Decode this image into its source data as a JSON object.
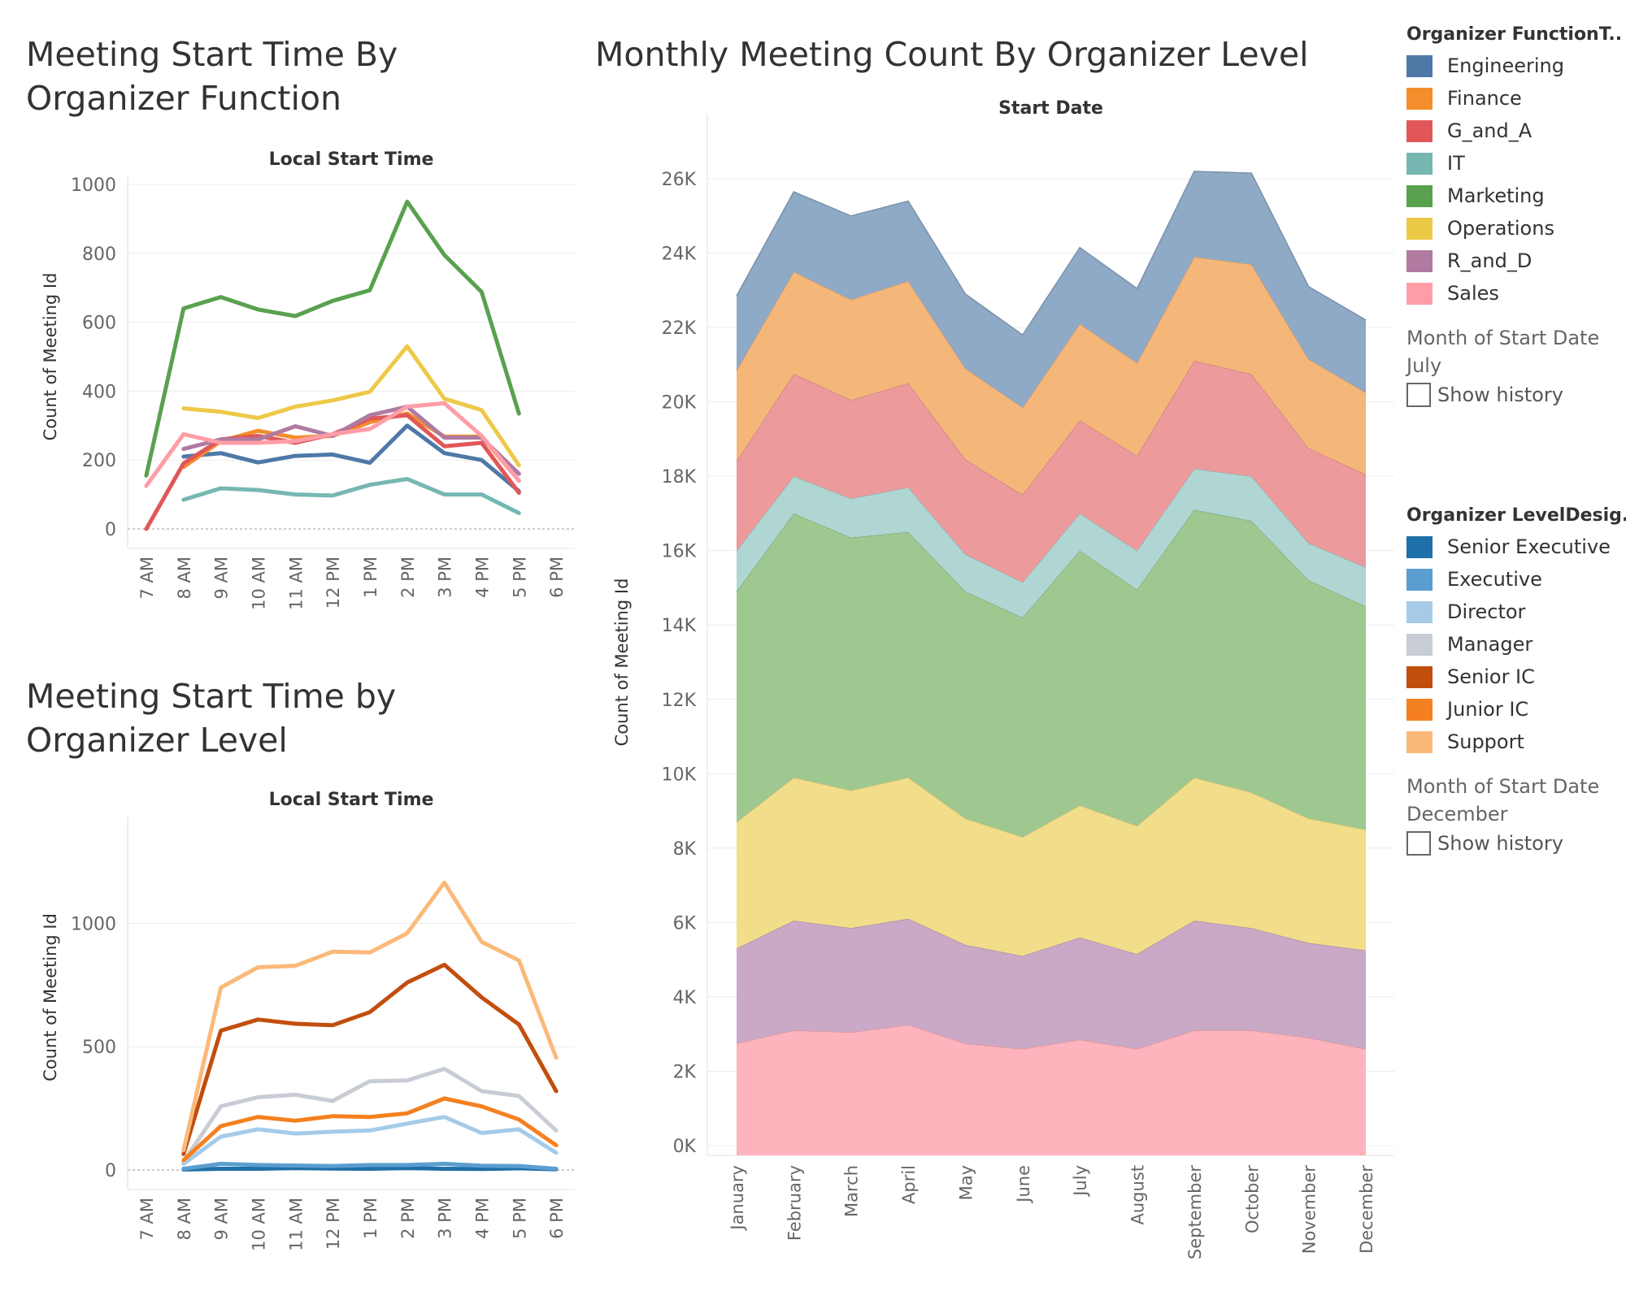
{
  "chart_data": [
    {
      "type": "line",
      "title": "Meeting Start Time By Organizer Function",
      "xlabel": "Local Start Time",
      "ylabel": "Count of Meeting Id",
      "categories": [
        "7 AM",
        "8 AM",
        "9 AM",
        "10 AM",
        "11 AM",
        "12 PM",
        "1 PM",
        "2 PM",
        "3 PM",
        "4 PM",
        "5 PM",
        "6 PM"
      ],
      "ylim": [
        0,
        1000
      ],
      "yticks": [
        0,
        200,
        400,
        600,
        800,
        1000
      ],
      "series": [
        {
          "name": "Engineering",
          "color": "#4e79a7",
          "values": [
            null,
            210,
            220,
            193,
            212,
            216,
            192,
            300,
            220,
            200,
            110,
            null
          ]
        },
        {
          "name": "Finance",
          "color": "#f28e2b",
          "values": [
            null,
            180,
            255,
            285,
            265,
            270,
            310,
            335,
            268,
            268,
            140,
            null
          ]
        },
        {
          "name": "G_and_A",
          "color": "#e15759",
          "values": [
            0,
            190,
            260,
            270,
            250,
            275,
            320,
            330,
            240,
            250,
            105,
            null
          ]
        },
        {
          "name": "IT",
          "color": "#76b7b2",
          "values": [
            null,
            85,
            118,
            113,
            100,
            97,
            128,
            145,
            100,
            100,
            46,
            null
          ]
        },
        {
          "name": "Marketing",
          "color": "#59a14f",
          "values": [
            155,
            640,
            673,
            637,
            618,
            662,
            693,
            950,
            795,
            688,
            335,
            null
          ]
        },
        {
          "name": "Operations",
          "color": "#edc948",
          "values": [
            null,
            350,
            340,
            322,
            355,
            373,
            398,
            530,
            378,
            345,
            185,
            null
          ]
        },
        {
          "name": "R_and_D",
          "color": "#b07aa1",
          "values": [
            null,
            232,
            260,
            260,
            298,
            270,
            330,
            355,
            265,
            265,
            160,
            null
          ]
        },
        {
          "name": "Sales",
          "color": "#ff9da7",
          "values": [
            125,
            275,
            250,
            250,
            255,
            275,
            290,
            355,
            365,
            270,
            140,
            null
          ]
        }
      ]
    },
    {
      "type": "line",
      "title": "Meeting Start Time by Organizer Level",
      "xlabel": "Local Start Time",
      "ylabel": "Count of Meeting Id",
      "categories": [
        "7 AM",
        "8 AM",
        "9 AM",
        "10 AM",
        "11 AM",
        "12 PM",
        "1 PM",
        "2 PM",
        "3 PM",
        "4 PM",
        "5 PM",
        "6 PM"
      ],
      "ylim": [
        0,
        1400
      ],
      "yticks": [
        0,
        500,
        1000
      ],
      "series": [
        {
          "name": "Senior Executive",
          "color": "#1f6fa8",
          "values": [
            null,
            2,
            5,
            5,
            8,
            6,
            5,
            8,
            5,
            4,
            7,
            3
          ]
        },
        {
          "name": "Executive",
          "color": "#5a9ecf",
          "values": [
            null,
            5,
            25,
            20,
            18,
            16,
            20,
            20,
            25,
            17,
            16,
            5
          ]
        },
        {
          "name": "Director",
          "color": "#a5cbe8",
          "values": [
            null,
            25,
            135,
            165,
            148,
            155,
            160,
            188,
            215,
            150,
            165,
            70
          ]
        },
        {
          "name": "Manager",
          "color": "#c8ccd4",
          "values": [
            null,
            35,
            258,
            295,
            305,
            280,
            360,
            363,
            410,
            320,
            300,
            160
          ]
        },
        {
          "name": "Senior IC",
          "color": "#c24e0e",
          "values": [
            null,
            65,
            565,
            610,
            593,
            587,
            640,
            760,
            832,
            700,
            590,
            320
          ]
        },
        {
          "name": "Junior IC",
          "color": "#f4801f",
          "values": [
            null,
            40,
            178,
            215,
            200,
            218,
            215,
            230,
            290,
            258,
            205,
            100
          ]
        },
        {
          "name": "Support",
          "color": "#fbb979",
          "values": [
            null,
            80,
            740,
            822,
            828,
            885,
            882,
            960,
            1165,
            925,
            850,
            455
          ]
        }
      ]
    },
    {
      "type": "area",
      "stacked": true,
      "title": "Monthly Meeting Count By Organizer Level",
      "xlabel": "Start Date",
      "ylabel": "Count of Meeting Id",
      "categories": [
        "January",
        "February",
        "March",
        "April",
        "May",
        "June",
        "July",
        "August",
        "September",
        "October",
        "November",
        "December"
      ],
      "ylim": [
        0,
        26000
      ],
      "yticks": [
        0,
        2000,
        4000,
        6000,
        8000,
        10000,
        12000,
        14000,
        16000,
        18000,
        20000,
        22000,
        24000,
        26000
      ],
      "ytick_labels": [
        "0K",
        "2K",
        "4K",
        "6K",
        "8K",
        "10K",
        "12K",
        "14K",
        "16K",
        "18K",
        "20K",
        "22K",
        "24K",
        "26K"
      ],
      "series": [
        {
          "name": "Sales",
          "color": "#ffb3bc",
          "values": [
            2750,
            3100,
            3050,
            3250,
            2750,
            2600,
            2850,
            2600,
            3100,
            3100,
            2900,
            2600
          ]
        },
        {
          "name": "R_and_D",
          "color": "#c9a9c6",
          "values": [
            2550,
            2950,
            2800,
            2850,
            2650,
            2500,
            2750,
            2550,
            2950,
            2750,
            2550,
            2650
          ]
        },
        {
          "name": "Operations",
          "color": "#f2dd8a",
          "values": [
            3400,
            3850,
            3700,
            3800,
            3400,
            3200,
            3550,
            3450,
            3850,
            3650,
            3350,
            3250
          ]
        },
        {
          "name": "Marketing",
          "color": "#9fc891",
          "values": [
            6200,
            7100,
            6800,
            6600,
            6100,
            5900,
            6850,
            6350,
            7200,
            7300,
            6400,
            6000
          ]
        },
        {
          "name": "IT",
          "color": "#afd6d3",
          "values": [
            1100,
            1000,
            1050,
            1200,
            1000,
            950,
            1000,
            1050,
            1100,
            1200,
            1000,
            1050
          ]
        },
        {
          "name": "G_and_A",
          "color": "#ec9a9b",
          "values": [
            2400,
            2750,
            2650,
            2800,
            2550,
            2350,
            2500,
            2550,
            2900,
            2750,
            2550,
            2500
          ]
        },
        {
          "name": "Finance",
          "color": "#f5b67a",
          "values": [
            2450,
            2750,
            2700,
            2750,
            2450,
            2350,
            2600,
            2500,
            2800,
            2950,
            2400,
            2200
          ]
        },
        {
          "name": "Engineering",
          "color": "#8faac7",
          "values": [
            2000,
            2150,
            2250,
            2150,
            2000,
            1950,
            2050,
            2000,
            2300,
            2450,
            1950,
            1950
          ]
        }
      ]
    }
  ],
  "legends": {
    "function": {
      "title": "Organizer FunctionT..",
      "items": [
        {
          "label": "Engineering",
          "color": "#4e79a7"
        },
        {
          "label": "Finance",
          "color": "#f28e2b"
        },
        {
          "label": "G_and_A",
          "color": "#e15759"
        },
        {
          "label": "IT",
          "color": "#76b7b2"
        },
        {
          "label": "Marketing",
          "color": "#59a14f"
        },
        {
          "label": "Operations",
          "color": "#edc948"
        },
        {
          "label": "R_and_D",
          "color": "#b07aa1"
        },
        {
          "label": "Sales",
          "color": "#ff9da7"
        }
      ],
      "filter_label": "Month of Start Date",
      "filter_value": "July",
      "history_label": "Show history"
    },
    "level": {
      "title": "Organizer LevelDesig..",
      "items": [
        {
          "label": "Senior Executive",
          "color": "#1f6fa8"
        },
        {
          "label": "Executive",
          "color": "#5a9ecf"
        },
        {
          "label": "Director",
          "color": "#a5cbe8"
        },
        {
          "label": "Manager",
          "color": "#c8ccd4"
        },
        {
          "label": "Senior IC",
          "color": "#c24e0e"
        },
        {
          "label": "Junior IC",
          "color": "#f4801f"
        },
        {
          "label": "Support",
          "color": "#fbb979"
        }
      ],
      "filter_label": "Month of Start Date",
      "filter_value": "December",
      "history_label": "Show history"
    }
  }
}
